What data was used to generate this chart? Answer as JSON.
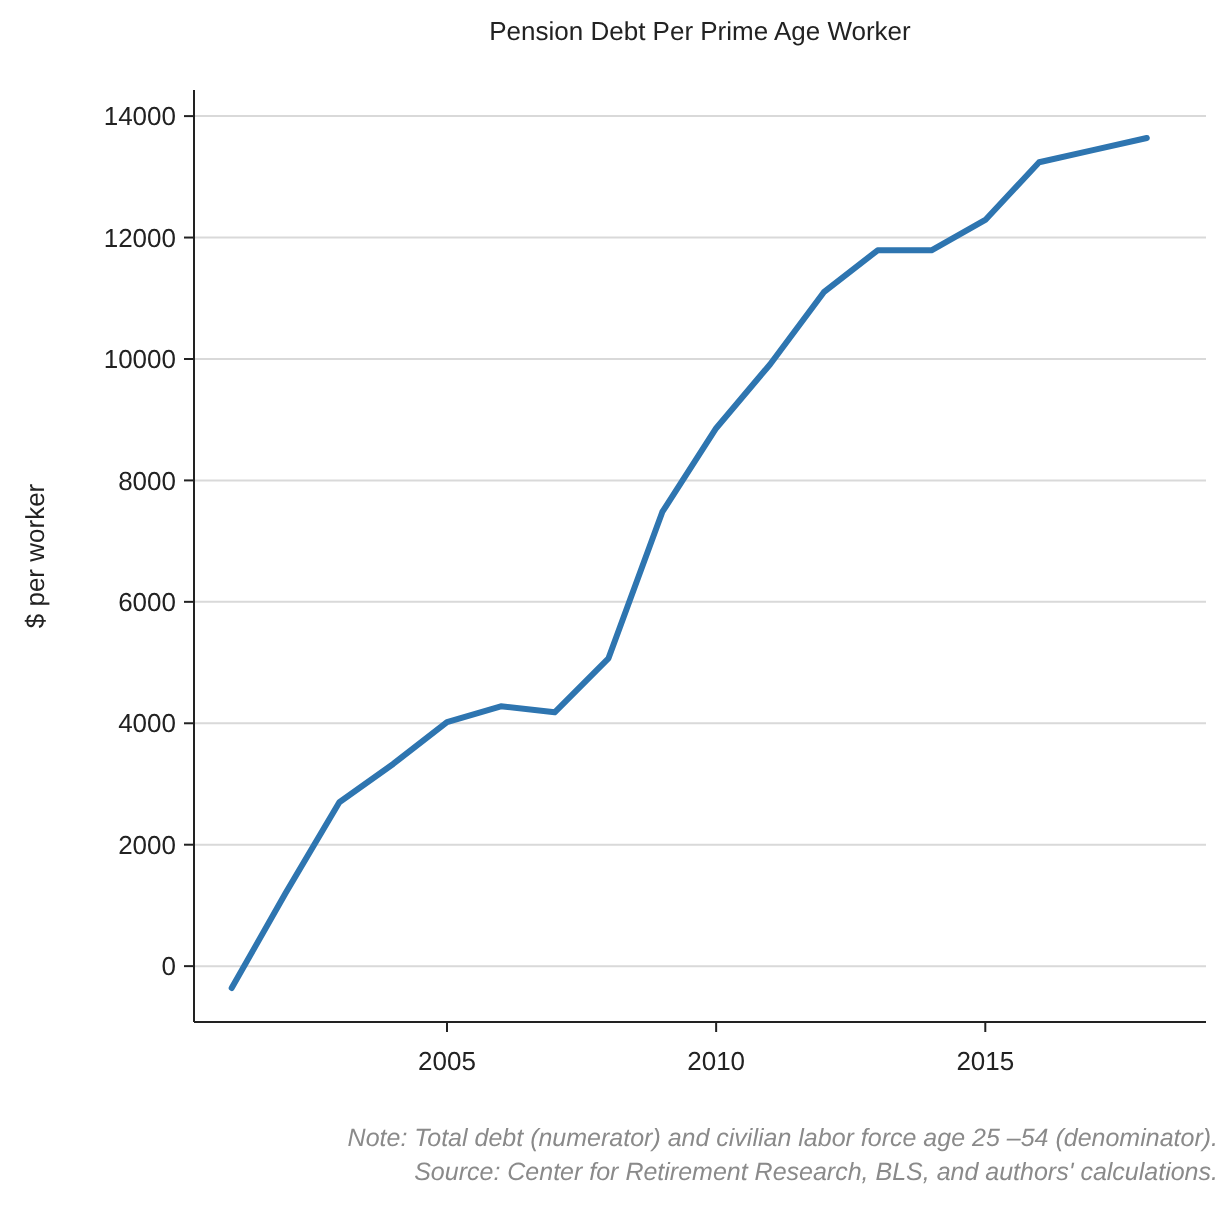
{
  "chart_data": {
    "type": "line",
    "title": "Pension Debt Per Prime Age Worker",
    "ylabel": "$ per worker",
    "x": [
      2001,
      2002,
      2003,
      2004,
      2005,
      2006,
      2007,
      2008,
      2009,
      2010,
      2011,
      2012,
      2013,
      2014,
      2015,
      2016,
      2017,
      2018
    ],
    "series": [
      {
        "color": "#2e75b0",
        "values": [
          -360,
          1200,
          2700,
          3330,
          4020,
          4280,
          4180,
          5070,
          7480,
          8860,
          9910,
          11100,
          11790,
          11790,
          12290,
          13240,
          13440,
          13640
        ]
      }
    ],
    "xlim": [
      2000.3,
      2019.1
    ],
    "xticks": [
      2005,
      2010,
      2015
    ],
    "ylim": [
      -920,
      14430
    ],
    "yticks": [
      0,
      2000,
      4000,
      6000,
      8000,
      10000,
      12000,
      14000
    ],
    "grid": "y",
    "marker": "none",
    "line_style": "solid",
    "annotations": [
      "Note: Total debt (numerator) and civilian labor force age 25 –54 (denominator).",
      "Source: Center for Retirement Research, BLS, and authors' calculations."
    ]
  }
}
